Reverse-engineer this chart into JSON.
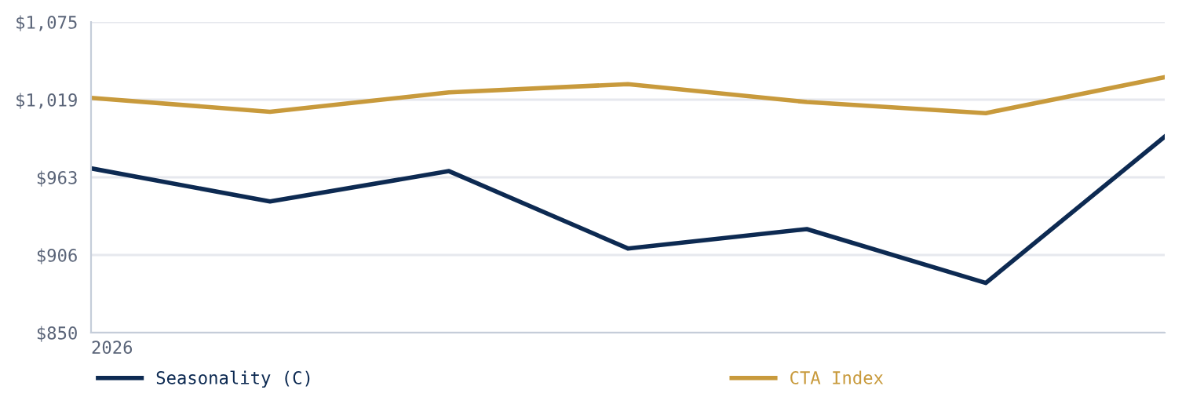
{
  "chart_data": {
    "type": "line",
    "categories": [
      "2026",
      null,
      null,
      null,
      null,
      null,
      null
    ],
    "series": [
      {
        "name": "Seasonality (C)",
        "color": "#0d2a52",
        "values": [
          969,
          945,
          967,
          911,
          925,
          886,
          992
        ]
      },
      {
        "name": "CTA Index",
        "color": "#c89a3c",
        "values": [
          1020,
          1010,
          1024,
          1030,
          1017,
          1009,
          1035
        ]
      }
    ],
    "ylim": [
      850,
      1075
    ],
    "yticks": [
      {
        "value": 850,
        "label": "$850"
      },
      {
        "value": 906.25,
        "label": "$906"
      },
      {
        "value": 962.5,
        "label": "$963"
      },
      {
        "value": 1018.75,
        "label": "$1,019"
      },
      {
        "value": 1075,
        "label": "$1,075"
      }
    ],
    "grid": "y",
    "legend": "bottom",
    "marker": "none",
    "line_style": "solid"
  }
}
